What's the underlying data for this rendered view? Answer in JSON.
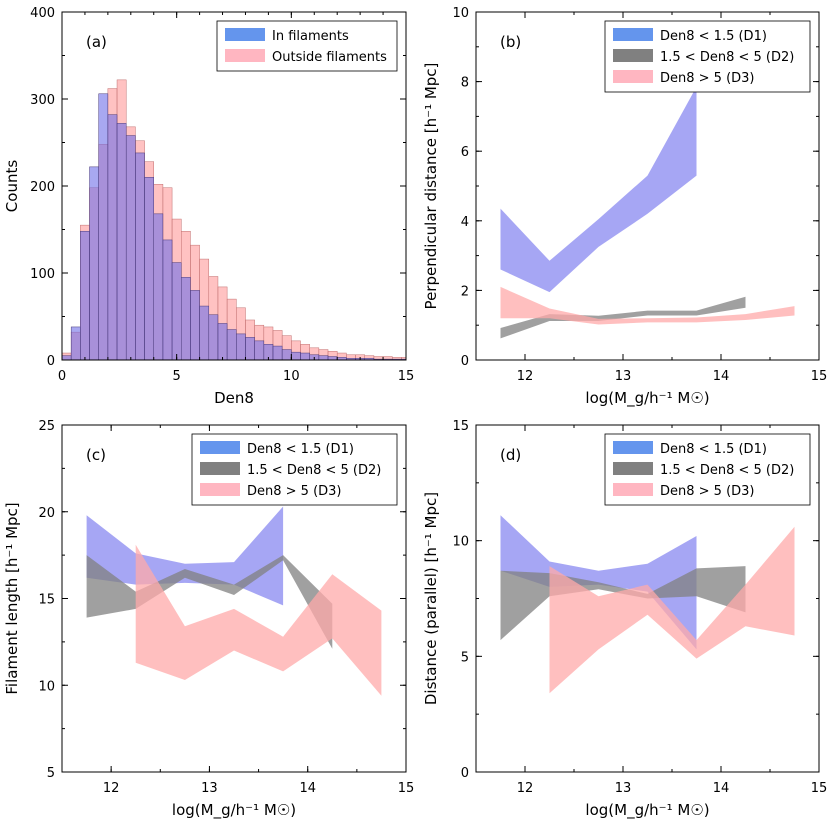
{
  "colors": {
    "in_filaments": "#6495ED",
    "outside_filaments": "#FFB6C1",
    "hist_in": "#6e6ee8",
    "hist_out": "#ff9999",
    "d1": "#8888f0",
    "d2": "#808080",
    "d3": "#ffaaaa"
  },
  "chart_data": [
    {
      "panel": "(a)",
      "type": "bar",
      "xlabel": "Den8",
      "ylabel": "Counts",
      "xlim": [
        0,
        15
      ],
      "ylim": [
        0,
        400
      ],
      "xticks": [
        "0",
        "5",
        "10",
        "15"
      ],
      "yticks": [
        "0",
        "100",
        "200",
        "300",
        "400"
      ],
      "bin_width": 0.4,
      "bin_start": 0.0,
      "legend": {
        "placement": "top-right",
        "entries": [
          "In filaments",
          "Outside filaments"
        ]
      },
      "series": [
        {
          "name": "In filaments",
          "values": [
            5,
            38,
            148,
            222,
            306,
            282,
            272,
            258,
            238,
            210,
            168,
            138,
            112,
            95,
            80,
            62,
            52,
            42,
            35,
            30,
            26,
            22,
            18,
            16,
            12,
            9,
            8,
            6,
            5,
            4,
            3,
            2,
            2,
            2,
            1,
            1,
            1,
            1
          ]
        },
        {
          "name": "Outside filaments",
          "values": [
            8,
            32,
            155,
            198,
            248,
            312,
            322,
            268,
            252,
            228,
            202,
            198,
            162,
            148,
            132,
            116,
            96,
            84,
            70,
            60,
            46,
            40,
            38,
            34,
            28,
            22,
            18,
            14,
            12,
            10,
            8,
            6,
            6,
            5,
            4,
            4,
            3,
            3
          ]
        }
      ]
    },
    {
      "panel": "(b)",
      "type": "area",
      "xlabel": "log(M_g/h⁻¹ M☉)",
      "ylabel": "Perpendicular distance [h⁻¹ Mpc]",
      "xlim": [
        11.5,
        15
      ],
      "ylim": [
        0,
        10
      ],
      "xticks": [
        "12",
        "13",
        "14",
        "15"
      ],
      "yticks": [
        "0",
        "2",
        "4",
        "6",
        "8",
        "10"
      ],
      "legend": {
        "placement": "top-right",
        "entries": [
          "Den8 < 1.5 (D1)",
          "1.5 < Den8 < 5 (D2)",
          "Den8 > 5 (D3)"
        ]
      },
      "series": [
        {
          "name": "Den8 < 1.5 (D1)",
          "x": [
            11.75,
            12.25,
            12.75,
            13.25,
            13.75
          ],
          "lower": [
            2.6,
            1.95,
            3.25,
            4.2,
            5.3
          ],
          "upper": [
            4.35,
            2.85,
            4.05,
            5.3,
            7.85
          ]
        },
        {
          "name": "1.5 < Den8 < 5 (D2)",
          "x": [
            11.75,
            12.25,
            12.75,
            13.25,
            13.75,
            14.25
          ],
          "lower": [
            0.62,
            1.12,
            1.12,
            1.28,
            1.28,
            1.5
          ],
          "upper": [
            0.92,
            1.32,
            1.27,
            1.42,
            1.42,
            1.82
          ]
        },
        {
          "name": "Den8 > 5 (D3)",
          "x": [
            11.75,
            12.25,
            12.75,
            13.25,
            13.75,
            14.25,
            14.75
          ],
          "lower": [
            1.2,
            1.2,
            1.02,
            1.08,
            1.08,
            1.15,
            1.28
          ],
          "upper": [
            2.1,
            1.48,
            1.18,
            1.2,
            1.22,
            1.32,
            1.55
          ]
        }
      ]
    },
    {
      "panel": "(c)",
      "type": "area",
      "xlabel": "log(M_g/h⁻¹ M☉)",
      "ylabel": "Filament length [h⁻¹ Mpc]",
      "xlim": [
        11.5,
        15
      ],
      "ylim": [
        5,
        25
      ],
      "xticks": [
        "12",
        "13",
        "14",
        "15"
      ],
      "yticks": [
        "5",
        "10",
        "15",
        "20",
        "25"
      ],
      "legend": {
        "placement": "top-right",
        "entries": [
          "Den8 < 1.5 (D1)",
          "1.5 < Den8 < 5 (D2)",
          "Den8 > 5 (D3)"
        ]
      },
      "series": [
        {
          "name": "Den8 < 1.5 (D1)",
          "x": [
            11.75,
            12.25,
            12.75,
            13.25,
            13.75
          ],
          "lower": [
            16.2,
            15.8,
            15.9,
            15.8,
            14.6
          ],
          "upper": [
            19.8,
            17.6,
            17.0,
            17.1,
            20.3
          ]
        },
        {
          "name": "1.5 < Den8 < 5 (D2)",
          "x": [
            11.75,
            12.25,
            12.75,
            13.25,
            13.75,
            14.25
          ],
          "lower": [
            13.9,
            14.4,
            16.2,
            15.2,
            17.2,
            12.1
          ],
          "upper": [
            17.5,
            15.4,
            16.7,
            15.8,
            17.5,
            14.7
          ]
        },
        {
          "name": "Den8 > 5 (D3)",
          "x": [
            12.25,
            12.75,
            13.25,
            13.75,
            14.25,
            14.75
          ],
          "lower": [
            11.3,
            10.3,
            12.0,
            10.8,
            12.7,
            9.4
          ],
          "upper": [
            18.1,
            13.4,
            14.4,
            12.8,
            16.4,
            14.3
          ]
        }
      ]
    },
    {
      "panel": "(d)",
      "type": "area",
      "xlabel": "log(M_g/h⁻¹ M☉)",
      "ylabel": "Distance (parallel) [h⁻¹ Mpc]",
      "xlim": [
        11.5,
        15
      ],
      "ylim": [
        0,
        15
      ],
      "xticks": [
        "12",
        "13",
        "14",
        "15"
      ],
      "yticks": [
        "0",
        "5",
        "10",
        "15"
      ],
      "legend": {
        "placement": "top-right",
        "entries": [
          "Den8 < 1.5 (D1)",
          "1.5 < Den8 < 5 (D2)",
          "Den8 > 5 (D3)"
        ]
      },
      "series": [
        {
          "name": "Den8 < 1.5 (D1)",
          "x": [
            11.75,
            12.25,
            12.75,
            13.25,
            13.75
          ],
          "lower": [
            8.7,
            8.0,
            8.1,
            7.8,
            5.3
          ],
          "upper": [
            11.1,
            9.1,
            8.7,
            9.0,
            10.2
          ]
        },
        {
          "name": "1.5 < Den8 < 5 (D2)",
          "x": [
            11.75,
            12.25,
            12.75,
            13.25,
            13.75,
            14.25
          ],
          "lower": [
            5.7,
            7.6,
            7.9,
            7.5,
            7.6,
            6.9
          ],
          "upper": [
            8.7,
            8.6,
            8.2,
            7.7,
            8.8,
            8.9
          ]
        },
        {
          "name": "Den8 > 5 (D3)",
          "x": [
            12.25,
            12.75,
            13.25,
            13.75,
            14.25,
            14.75
          ],
          "lower": [
            3.4,
            5.3,
            6.8,
            4.9,
            6.3,
            5.9
          ],
          "upper": [
            8.9,
            7.6,
            8.1,
            5.7,
            8.1,
            10.6
          ]
        }
      ]
    }
  ]
}
